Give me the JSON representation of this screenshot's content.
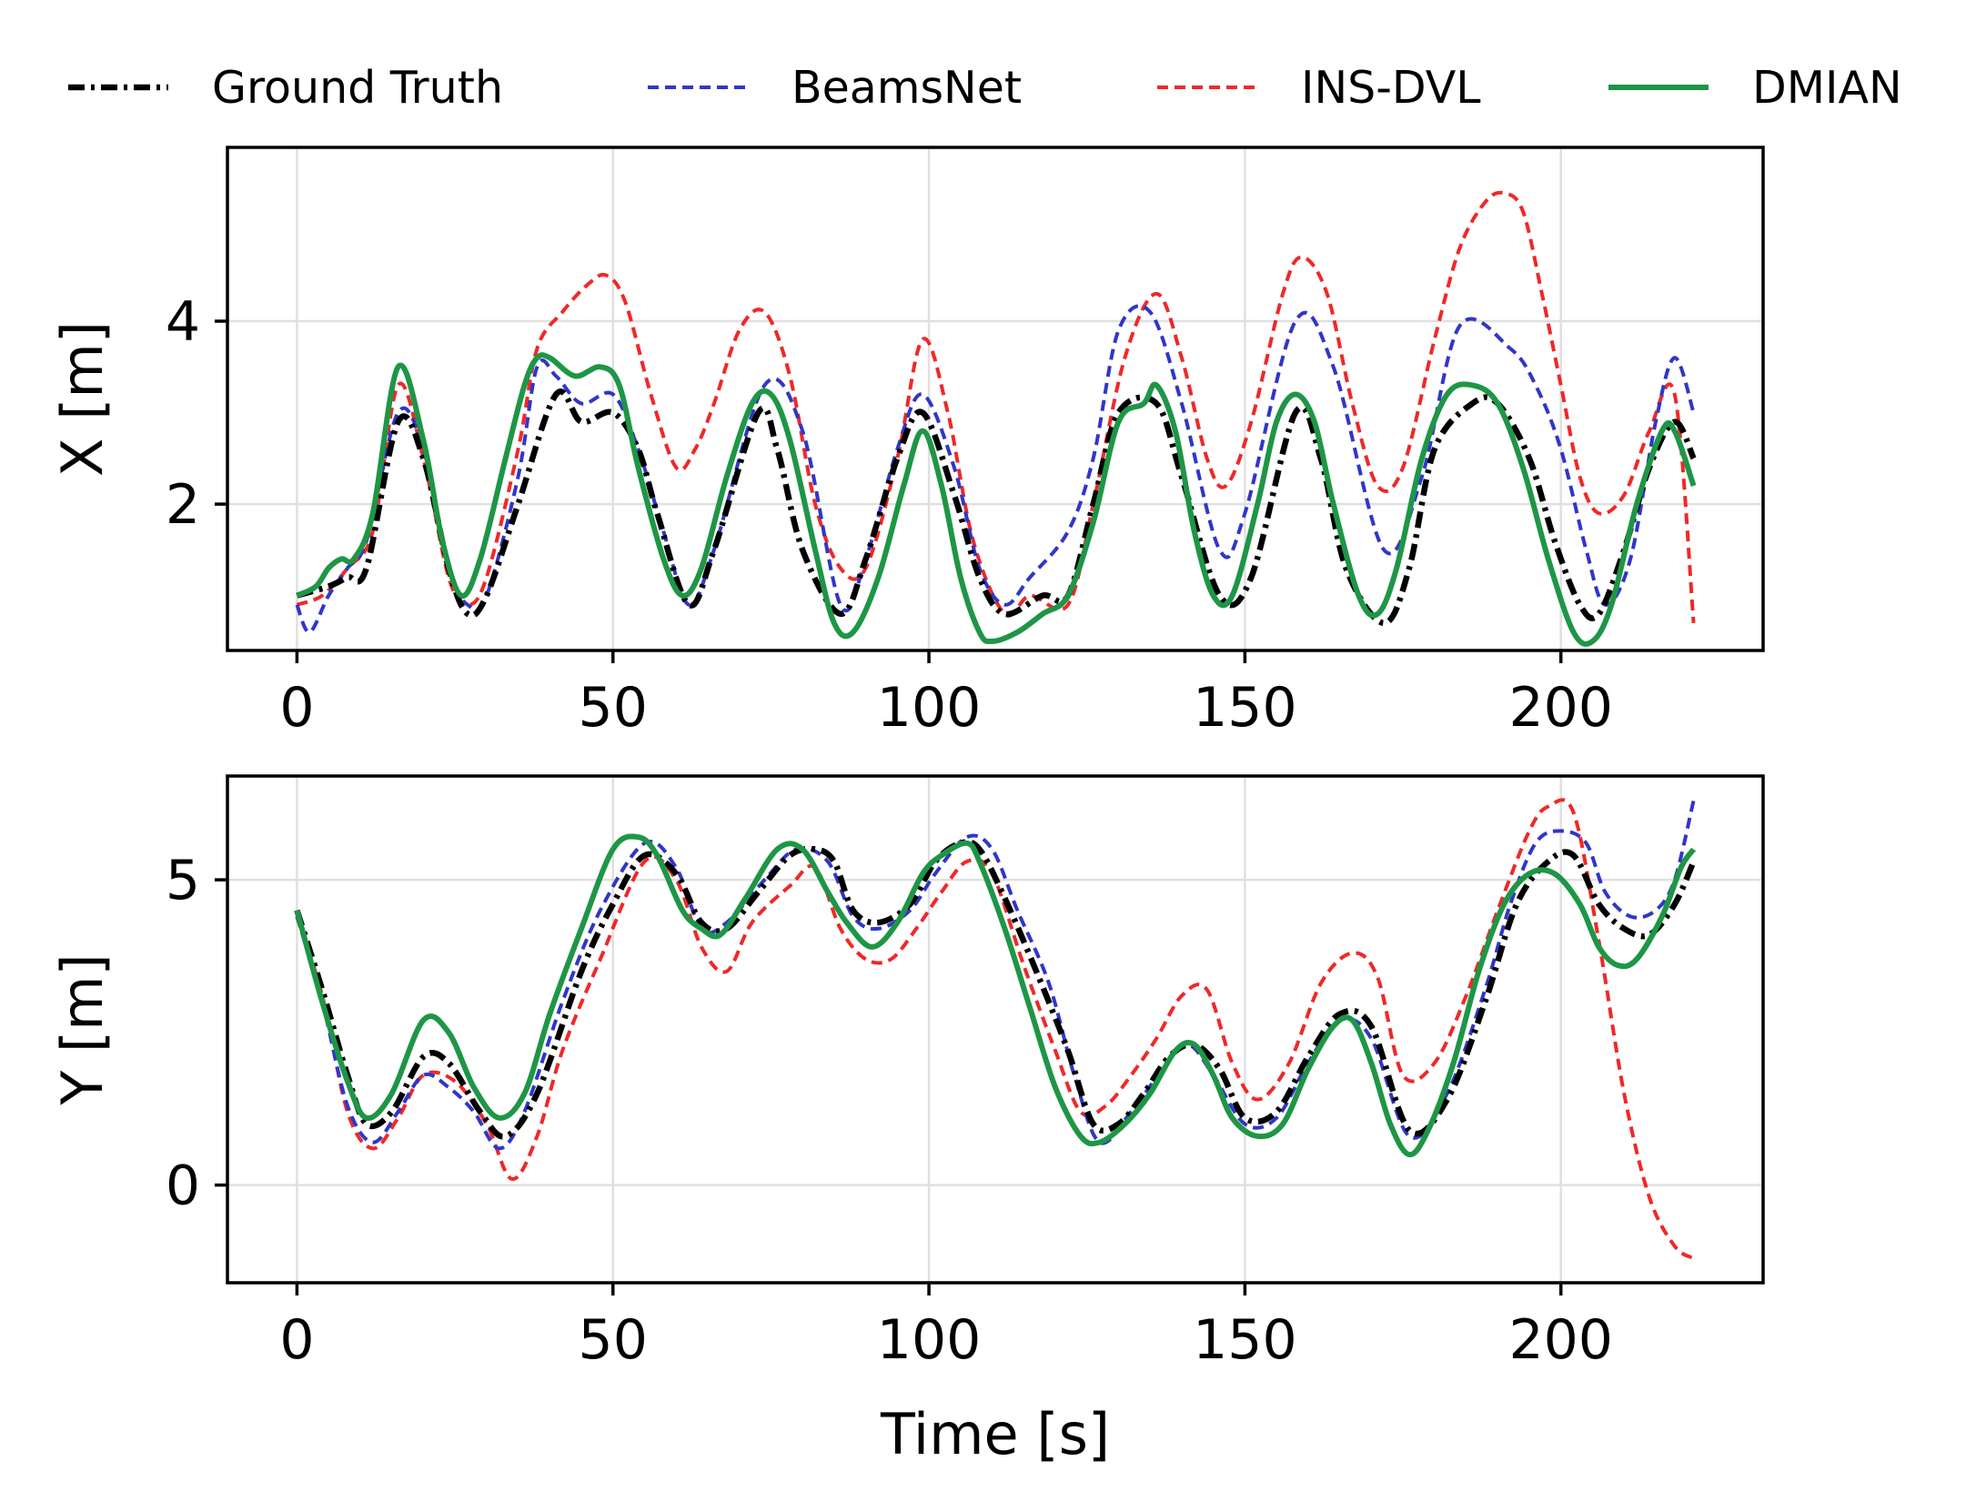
{
  "chart_data": [
    {
      "type": "line",
      "panel": "top",
      "ylabel": "X [m]",
      "xlabel": "",
      "xlim": [
        -11,
        232
      ],
      "ylim": [
        0.4,
        5.9
      ],
      "xticks": [
        0,
        50,
        100,
        150,
        200
      ],
      "yticks": [
        2,
        4
      ],
      "grid": true,
      "series": [
        {
          "name": "Ground Truth",
          "x": [
            0,
            5,
            8,
            11,
            16,
            20,
            24,
            27,
            30,
            35,
            41,
            45,
            50,
            54,
            57,
            62,
            66,
            73,
            76,
            80,
            86,
            90,
            95,
            99,
            104,
            108,
            112,
            118,
            122,
            126,
            130,
            136,
            140,
            146,
            151,
            158,
            162,
            166,
            172,
            176,
            180,
            186,
            190,
            195,
            199,
            203,
            206,
            210,
            214,
            218,
            221
          ],
          "y": [
            1.0,
            1.1,
            1.2,
            1.3,
            2.9,
            2.5,
            1.3,
            0.8,
            1.0,
            2.0,
            3.2,
            2.9,
            3.0,
            2.6,
            1.9,
            0.9,
            1.5,
            3.0,
            2.6,
            1.5,
            0.8,
            1.4,
            2.5,
            3.0,
            2.1,
            1.2,
            0.8,
            1.0,
            1.0,
            2.0,
            3.0,
            3.1,
            2.3,
            1.0,
            1.2,
            3.0,
            2.5,
            1.3,
            0.7,
            1.3,
            2.6,
            3.1,
            3.1,
            2.5,
            1.6,
            0.9,
            0.8,
            1.5,
            2.4,
            2.9,
            2.5
          ]
        },
        {
          "name": "BeamsNet",
          "x": [
            0,
            2,
            5,
            8,
            11,
            16,
            20,
            24,
            27,
            30,
            35,
            38,
            41,
            45,
            50,
            54,
            58,
            62,
            66,
            74,
            80,
            86,
            90,
            95,
            99,
            104,
            108,
            112,
            116,
            122,
            126,
            130,
            135,
            140,
            146,
            150,
            158,
            164,
            172,
            178,
            184,
            192,
            196,
            200,
            204,
            207,
            211,
            215,
            218,
            221
          ],
          "y": [
            0.9,
            0.6,
            1.0,
            1.3,
            1.6,
            3.0,
            2.6,
            1.3,
            0.9,
            1.0,
            2.3,
            3.5,
            3.4,
            3.1,
            3.2,
            2.6,
            1.7,
            0.9,
            1.5,
            3.3,
            2.8,
            0.9,
            1.4,
            2.6,
            3.2,
            2.4,
            1.3,
            0.9,
            1.2,
            1.7,
            2.5,
            3.9,
            4.1,
            3.1,
            1.5,
            1.9,
            4.0,
            3.5,
            1.5,
            2.3,
            3.95,
            3.7,
            3.3,
            2.6,
            1.5,
            0.9,
            1.4,
            2.9,
            3.6,
            3.0
          ]
        },
        {
          "name": "INS-DVL",
          "x": [
            0,
            4,
            8,
            12,
            16,
            20,
            24,
            27,
            30,
            35,
            38,
            42,
            46,
            49,
            52,
            56,
            60,
            63,
            66,
            70,
            74,
            78,
            82,
            86,
            90,
            95,
            99,
            103,
            107,
            112,
            116,
            122,
            126,
            131,
            136,
            140,
            144,
            147,
            151,
            156,
            159,
            163,
            167,
            171,
            175,
            180,
            184,
            188,
            191,
            194,
            197,
            200,
            203,
            206,
            210,
            214,
            218,
            221
          ],
          "y": [
            0.9,
            1.0,
            1.3,
            1.7,
            3.3,
            2.5,
            1.2,
            0.9,
            1.2,
            2.6,
            3.7,
            4.1,
            4.4,
            4.5,
            4.2,
            3.2,
            2.4,
            2.6,
            3.1,
            3.9,
            4.1,
            3.4,
            2.0,
            1.3,
            1.3,
            2.5,
            3.8,
            3.0,
            1.6,
            0.8,
            1.0,
            0.9,
            2.0,
            3.6,
            4.3,
            3.6,
            2.5,
            2.2,
            2.9,
            4.3,
            4.7,
            4.3,
            3.1,
            2.2,
            2.4,
            3.8,
            4.8,
            5.3,
            5.4,
            5.2,
            4.3,
            3.3,
            2.3,
            1.9,
            2.1,
            2.8,
            3.2,
            0.7
          ]
        },
        {
          "name": "DMIAN",
          "x": [
            0,
            3,
            5,
            7,
            9,
            12,
            16,
            20,
            23,
            26,
            29,
            33,
            36,
            38,
            40,
            44,
            48,
            51,
            54,
            58,
            61,
            64,
            68,
            72,
            75,
            78,
            82,
            85,
            88,
            92,
            96,
            99,
            102,
            105,
            108,
            110,
            114,
            118,
            122,
            126,
            130,
            134,
            136,
            139,
            142,
            145,
            148,
            152,
            155,
            158,
            161,
            164,
            168,
            171,
            174,
            178,
            182,
            186,
            190,
            194,
            198,
            202,
            205,
            208,
            212,
            216,
            218,
            221
          ],
          "y": [
            1.0,
            1.1,
            1.3,
            1.4,
            1.4,
            1.9,
            3.5,
            2.7,
            1.6,
            1.0,
            1.4,
            2.5,
            3.3,
            3.6,
            3.6,
            3.4,
            3.5,
            3.3,
            2.4,
            1.4,
            1.0,
            1.3,
            2.3,
            3.1,
            3.2,
            2.7,
            1.5,
            0.7,
            0.6,
            1.2,
            2.2,
            2.8,
            2.2,
            1.2,
            0.6,
            0.5,
            0.6,
            0.8,
            1.0,
            1.8,
            2.9,
            3.1,
            3.3,
            2.8,
            1.7,
            1.0,
            1.0,
            2.0,
            2.9,
            3.2,
            2.9,
            2.0,
            1.0,
            0.8,
            1.3,
            2.5,
            3.2,
            3.3,
            3.1,
            2.4,
            1.4,
            0.6,
            0.5,
            0.9,
            2.0,
            2.8,
            2.8,
            2.2
          ]
        }
      ]
    },
    {
      "type": "line",
      "panel": "bottom",
      "ylabel": "Y [m]",
      "xlabel": "Time [s]",
      "xlim": [
        -11,
        232
      ],
      "ylim": [
        -1.6,
        6.7
      ],
      "xticks": [
        0,
        50,
        100,
        150,
        200
      ],
      "yticks": [
        0,
        5
      ],
      "grid": true,
      "series": [
        {
          "name": "Ground Truth",
          "x": [
            0,
            4,
            8,
            11,
            15,
            20,
            24,
            29,
            33,
            38,
            45,
            50,
            55,
            60,
            64,
            68,
            73,
            78,
            82,
            85,
            88,
            92,
            97,
            101,
            105,
            108,
            112,
            117,
            122,
            126,
            130,
            134,
            138,
            142,
            146,
            150,
            155,
            160,
            165,
            170,
            176,
            182,
            188,
            193,
            198,
            202,
            206,
            210,
            214,
            218,
            221
          ],
          "y": [
            4.5,
            3.2,
            1.8,
            1.0,
            1.2,
            2.1,
            2.0,
            1.2,
            0.8,
            1.5,
            3.5,
            4.6,
            5.4,
            5.1,
            4.3,
            4.2,
            4.8,
            5.4,
            5.5,
            5.3,
            4.5,
            4.3,
            4.6,
            5.3,
            5.6,
            5.5,
            4.7,
            3.5,
            2.2,
            1.0,
            1.0,
            1.5,
            2.1,
            2.3,
            1.9,
            1.1,
            1.2,
            2.1,
            2.8,
            2.6,
            0.9,
            1.4,
            3.0,
            4.6,
            5.3,
            5.4,
            4.6,
            4.2,
            4.1,
            4.6,
            5.3
          ]
        },
        {
          "name": "BeamsNet",
          "x": [
            0,
            4,
            8,
            12,
            16,
            20,
            24,
            28,
            32,
            36,
            42,
            48,
            55,
            60,
            64,
            68,
            74,
            79,
            84,
            88,
            92,
            97,
            101,
            106,
            110,
            114,
            119,
            123,
            127,
            132,
            137,
            141,
            145,
            150,
            155,
            160,
            165,
            170,
            176,
            182,
            188,
            192,
            196,
            200,
            204,
            207,
            211,
            215,
            218,
            221
          ],
          "y": [
            4.4,
            3.0,
            1.3,
            0.7,
            1.2,
            1.8,
            1.6,
            1.2,
            0.6,
            1.2,
            3.0,
            4.5,
            5.6,
            5.2,
            4.2,
            4.3,
            5.0,
            5.5,
            5.3,
            4.4,
            4.2,
            4.5,
            5.1,
            5.7,
            5.5,
            4.5,
            3.3,
            1.8,
            0.7,
            1.2,
            1.9,
            2.3,
            1.8,
            1.0,
            1.1,
            2.0,
            2.7,
            2.4,
            0.8,
            1.5,
            3.2,
            4.6,
            5.6,
            5.8,
            5.6,
            4.8,
            4.4,
            4.5,
            5.0,
            6.3
          ]
        },
        {
          "name": "INS-DVL",
          "x": [
            0,
            4,
            8,
            12,
            16,
            20,
            25,
            30,
            34,
            38,
            42,
            48,
            55,
            60,
            64,
            68,
            72,
            78,
            82,
            86,
            90,
            94,
            98,
            102,
            106,
            110,
            115,
            120,
            124,
            128,
            132,
            136,
            140,
            144,
            148,
            152,
            157,
            162,
            167,
            171,
            175,
            180,
            185,
            190,
            195,
            198,
            202,
            206,
            210,
            214,
            218,
            221
          ],
          "y": [
            4.4,
            3.1,
            1.2,
            0.6,
            1.1,
            1.8,
            1.7,
            1.0,
            0.1,
            0.8,
            2.2,
            3.7,
            5.3,
            5.0,
            3.9,
            3.5,
            4.3,
            4.9,
            5.2,
            4.2,
            3.7,
            3.7,
            4.2,
            4.8,
            5.3,
            5.1,
            3.6,
            2.2,
            1.2,
            1.3,
            1.8,
            2.4,
            3.1,
            3.2,
            2.0,
            1.4,
            2.0,
            3.3,
            3.8,
            3.4,
            1.8,
            2.0,
            3.1,
            4.5,
            5.8,
            6.2,
            6.1,
            4.0,
            1.5,
            -0.2,
            -1.0,
            -1.2
          ]
        },
        {
          "name": "DMIAN",
          "x": [
            0,
            4,
            8,
            11,
            15,
            20,
            24,
            28,
            32,
            36,
            40,
            45,
            50,
            54,
            57,
            61,
            64,
            67,
            71,
            76,
            80,
            84,
            87,
            91,
            95,
            99,
            102,
            106,
            108,
            112,
            116,
            120,
            124,
            127,
            131,
            135,
            139,
            142,
            145,
            148,
            152,
            156,
            160,
            164,
            167,
            170,
            173,
            176,
            179,
            183,
            187,
            191,
            195,
            199,
            203,
            206,
            209,
            212,
            216,
            219,
            221
          ],
          "y": [
            4.5,
            3.0,
            1.7,
            1.1,
            1.5,
            2.7,
            2.5,
            1.6,
            1.1,
            1.5,
            2.8,
            4.2,
            5.5,
            5.7,
            5.4,
            4.5,
            4.2,
            4.1,
            4.7,
            5.5,
            5.5,
            4.8,
            4.3,
            3.9,
            4.3,
            5.1,
            5.4,
            5.6,
            5.3,
            4.2,
            2.9,
            1.6,
            0.8,
            0.7,
            1.0,
            1.5,
            2.2,
            2.3,
            1.8,
            1.1,
            0.8,
            1.0,
            1.9,
            2.6,
            2.7,
            2.0,
            1.0,
            0.5,
            0.9,
            2.0,
            3.5,
            4.6,
            5.1,
            5.1,
            4.6,
            3.9,
            3.6,
            3.7,
            4.4,
            5.2,
            5.5
          ]
        }
      ]
    }
  ],
  "legend": {
    "placement": "top",
    "entries": [
      {
        "label": "Ground Truth",
        "color": "#000000",
        "style": "dashdot"
      },
      {
        "label": "BeamsNet",
        "color": "#3036c8",
        "style": "dashed"
      },
      {
        "label": "INS-DVL",
        "color": "#f02828",
        "style": "dashed"
      },
      {
        "label": "DMIAN",
        "color": "#1e9646",
        "style": "solid"
      }
    ]
  },
  "colors": {
    "ground_truth": "#000000",
    "beamsnet": "#3036c8",
    "ins_dvl": "#f02828",
    "dmian": "#1e9646",
    "grid": "#e0e0e0"
  }
}
